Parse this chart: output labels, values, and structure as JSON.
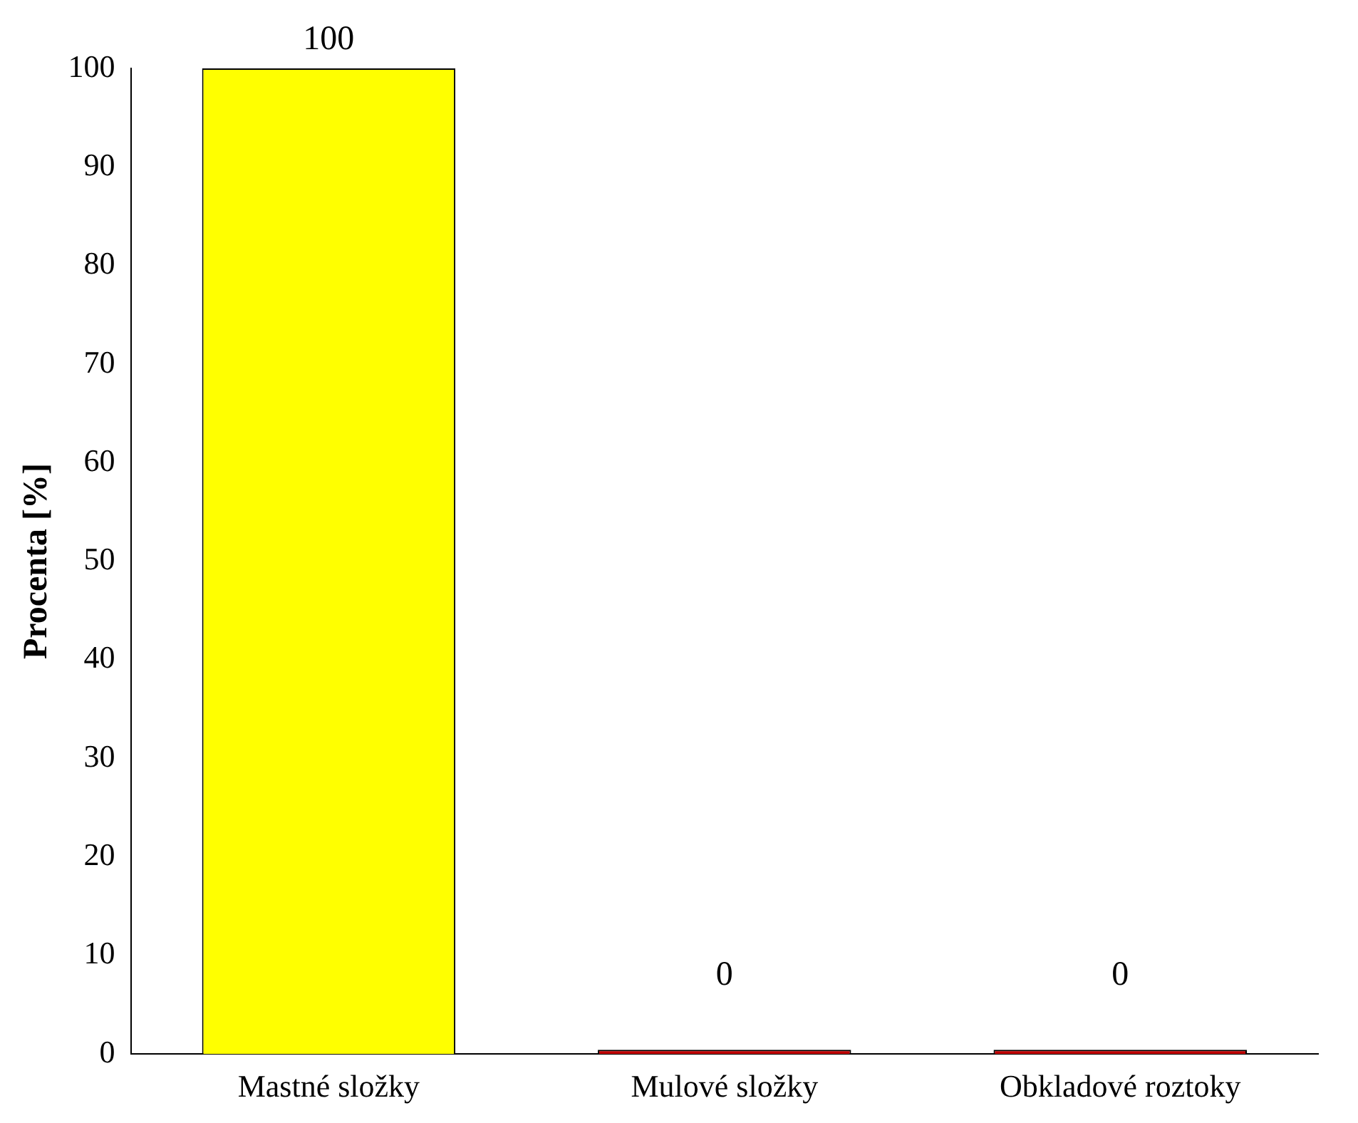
{
  "chart_data": {
    "type": "bar",
    "ylabel": "Procenta [%]",
    "categories": [
      "Mastné složky",
      "Mulové složky",
      "Obkladové roztoky"
    ],
    "values": [
      100,
      0,
      0
    ],
    "colors": [
      "#ffff00",
      "#c00000",
      "#c00000"
    ],
    "ylim": [
      0,
      100
    ],
    "yticks": [
      0,
      10,
      20,
      30,
      40,
      50,
      60,
      70,
      80,
      90,
      100
    ],
    "data_labels": true,
    "grid": false,
    "legend": false
  }
}
